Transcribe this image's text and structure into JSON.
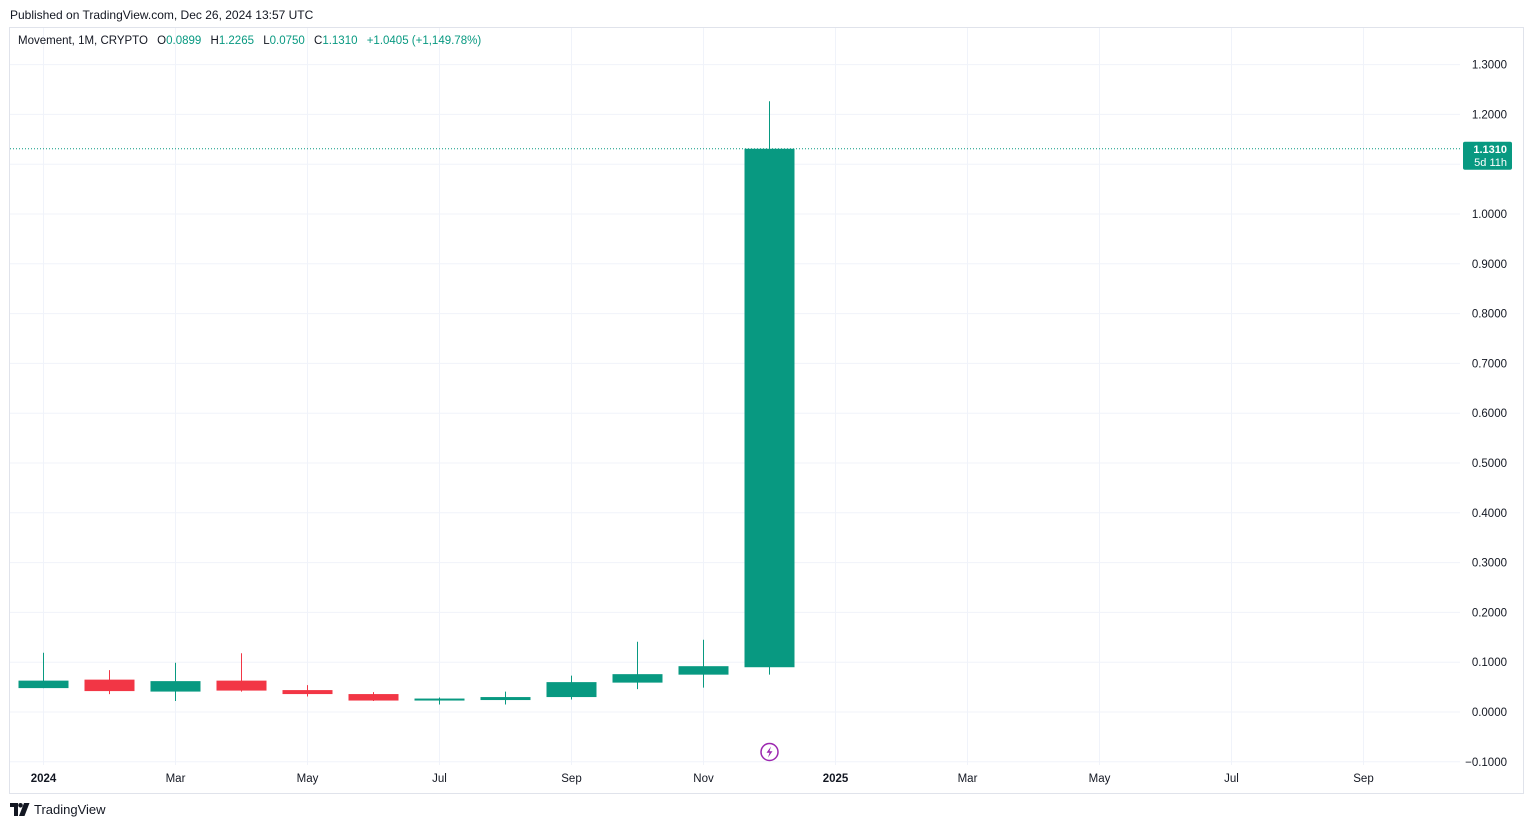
{
  "header": {
    "published": "Published on TradingView.com, Dec 26, 2024 13:57 UTC"
  },
  "legend": {
    "symbol": "Movement, 1M, CRYPTO",
    "open_key": "O",
    "open": "0.0899",
    "high_key": "H",
    "high": "1.2265",
    "low_key": "L",
    "low": "0.0750",
    "close_key": "C",
    "close": "1.1310",
    "change": "+1.0405 (+1,149.78%)"
  },
  "price_badge": {
    "price": "1.1310",
    "countdown": "5d 11h"
  },
  "footer": {
    "brand": "TradingView"
  },
  "colors": {
    "up": "#089981",
    "down": "#f23645",
    "grid": "#f0f3fa",
    "text": "#131722",
    "event": "#9c27b0"
  },
  "chart_data": {
    "type": "candlestick",
    "interval": "1M",
    "y_ticks": [
      "1.3000",
      "1.2000",
      "1.1000",
      "1.0000",
      "0.9000",
      "0.8000",
      "0.7000",
      "0.6000",
      "0.5000",
      "0.4000",
      "0.3000",
      "0.2000",
      "0.1000",
      "0.0000",
      "−0.1000"
    ],
    "y_tick_values": [
      1.3,
      1.2,
      1.1,
      1.0,
      0.9,
      0.8,
      0.7,
      0.6,
      0.5,
      0.4,
      0.3,
      0.2,
      0.1,
      0.0,
      -0.1
    ],
    "x_ticks": [
      {
        "label": "2024",
        "index": 0,
        "bold": true
      },
      {
        "label": "Mar",
        "index": 2
      },
      {
        "label": "May",
        "index": 4
      },
      {
        "label": "Jul",
        "index": 6
      },
      {
        "label": "Sep",
        "index": 8
      },
      {
        "label": "Nov",
        "index": 10
      },
      {
        "label": "2025",
        "index": 12,
        "bold": true
      },
      {
        "label": "Mar",
        "index": 14
      },
      {
        "label": "May",
        "index": 16
      },
      {
        "label": "Jul",
        "index": 18
      },
      {
        "label": "Sep",
        "index": 20
      }
    ],
    "candles": [
      {
        "month": "2024-01",
        "open": 0.048,
        "high": 0.119,
        "low": 0.048,
        "close": 0.063
      },
      {
        "month": "2024-02",
        "open": 0.065,
        "high": 0.084,
        "low": 0.036,
        "close": 0.042
      },
      {
        "month": "2024-03",
        "open": 0.041,
        "high": 0.099,
        "low": 0.022,
        "close": 0.062
      },
      {
        "month": "2024-04",
        "open": 0.063,
        "high": 0.118,
        "low": 0.041,
        "close": 0.043
      },
      {
        "month": "2024-05",
        "open": 0.044,
        "high": 0.054,
        "low": 0.031,
        "close": 0.036
      },
      {
        "month": "2024-06",
        "open": 0.036,
        "high": 0.04,
        "low": 0.022,
        "close": 0.023
      },
      {
        "month": "2024-07",
        "open": 0.023,
        "high": 0.029,
        "low": 0.015,
        "close": 0.027
      },
      {
        "month": "2024-08",
        "open": 0.024,
        "high": 0.041,
        "low": 0.015,
        "close": 0.03
      },
      {
        "month": "2024-09",
        "open": 0.03,
        "high": 0.073,
        "low": 0.025,
        "close": 0.06
      },
      {
        "month": "2024-10",
        "open": 0.059,
        "high": 0.141,
        "low": 0.046,
        "close": 0.076
      },
      {
        "month": "2024-11",
        "open": 0.075,
        "high": 0.145,
        "low": 0.049,
        "close": 0.092
      },
      {
        "month": "2024-12",
        "open": 0.0899,
        "high": 1.2265,
        "low": 0.075,
        "close": 1.131
      }
    ],
    "last_price": 1.131,
    "event_marker_index": 11
  }
}
